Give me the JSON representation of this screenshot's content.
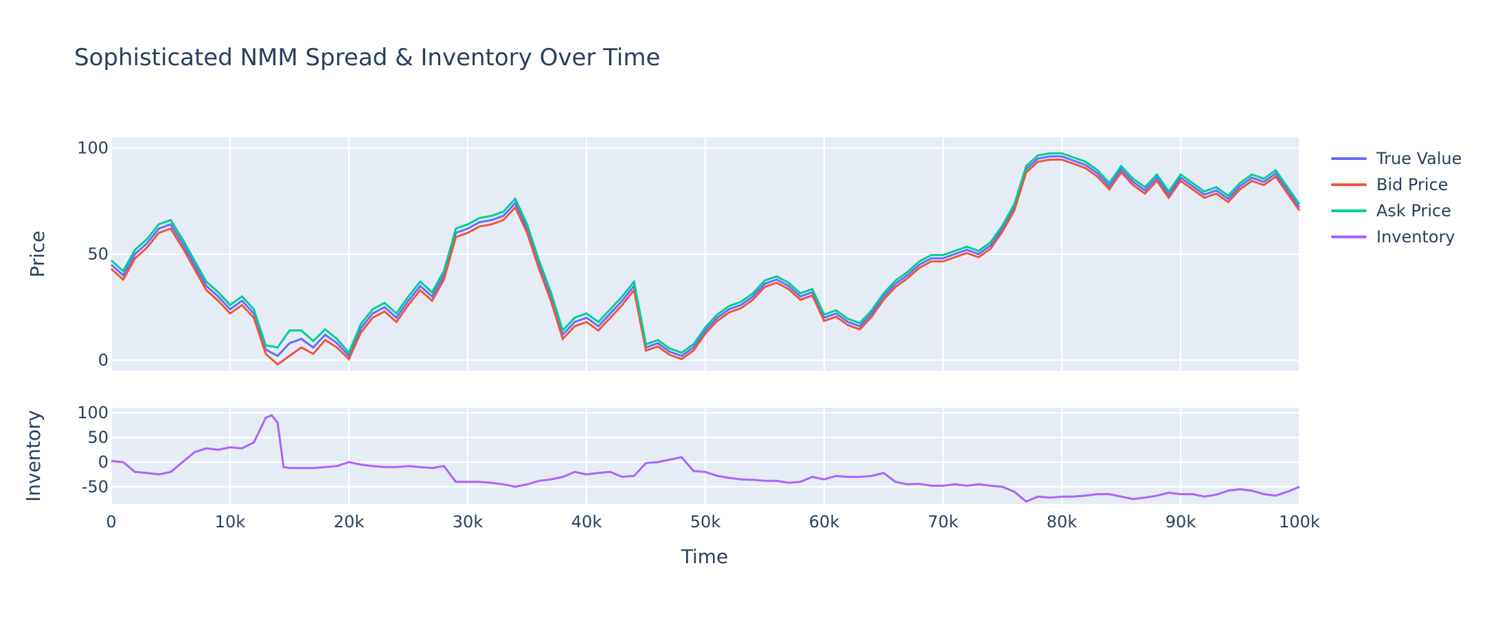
{
  "chart_data": {
    "type": "line",
    "title": "Sophisticated NMM Spread & Inventory Over Time",
    "xlabel": "Time",
    "x_ticks": [
      "0",
      "10k",
      "20k",
      "30k",
      "40k",
      "50k",
      "60k",
      "70k",
      "80k",
      "90k",
      "100k"
    ],
    "xlim": [
      0,
      100000
    ],
    "legend_position": "right",
    "grid": true,
    "subplots": [
      {
        "name": "price",
        "ylabel": "Price",
        "ylim": [
          -5,
          105
        ],
        "y_ticks": [
          0,
          50,
          100
        ],
        "series": [
          {
            "name": "True Value",
            "color": "#636efa"
          },
          {
            "name": "Bid Price",
            "color": "#ef553b"
          },
          {
            "name": "Ask Price",
            "color": "#00cc96"
          }
        ],
        "x": [
          0,
          1000,
          2000,
          3000,
          4000,
          5000,
          6000,
          7000,
          8000,
          9000,
          10000,
          11000,
          12000,
          13000,
          14000,
          15000,
          16000,
          17000,
          18000,
          19000,
          20000,
          21000,
          22000,
          23000,
          24000,
          25000,
          26000,
          27000,
          28000,
          29000,
          30000,
          31000,
          32000,
          33000,
          34000,
          35000,
          36000,
          37000,
          38000,
          39000,
          40000,
          41000,
          42000,
          43000,
          44000,
          45000,
          46000,
          47000,
          48000,
          49000,
          50000,
          51000,
          52000,
          53000,
          54000,
          55000,
          56000,
          57000,
          58000,
          59000,
          60000,
          61000,
          62000,
          63000,
          64000,
          65000,
          66000,
          67000,
          68000,
          69000,
          70000,
          71000,
          72000,
          73000,
          74000,
          75000,
          76000,
          77000,
          78000,
          79000,
          80000,
          81000,
          82000,
          83000,
          84000,
          85000,
          86000,
          87000,
          88000,
          89000,
          90000,
          91000,
          92000,
          93000,
          94000,
          95000,
          96000,
          97000,
          98000,
          99000,
          100000
        ],
        "true_value": [
          45,
          40,
          50,
          55,
          62,
          64,
          55,
          45,
          35,
          30,
          24,
          28,
          22,
          5,
          2,
          8,
          10,
          6,
          12,
          8,
          2,
          15,
          22,
          25,
          20,
          28,
          35,
          30,
          40,
          60,
          62,
          65,
          66,
          68,
          74,
          62,
          45,
          30,
          12,
          18,
          20,
          16,
          22,
          28,
          35,
          6,
          8,
          4,
          2,
          6,
          14,
          20,
          24,
          26,
          30,
          36,
          38,
          35,
          30,
          32,
          20,
          22,
          18,
          16,
          22,
          30,
          36,
          40,
          45,
          48,
          48,
          50,
          52,
          50,
          54,
          62,
          72,
          90,
          95,
          96,
          96,
          94,
          92,
          88,
          82,
          90,
          84,
          80,
          86,
          78,
          86,
          82,
          78,
          80,
          76,
          82,
          86,
          84,
          88,
          80,
          72
        ],
        "spread": [
          4,
          4,
          4,
          4,
          4,
          4,
          4,
          4,
          4,
          4,
          4,
          4,
          4,
          4,
          8,
          12,
          8,
          6,
          5,
          4,
          3,
          4,
          4,
          4,
          4,
          4,
          4,
          4,
          4,
          4,
          4,
          4,
          4,
          4,
          4,
          4,
          4,
          4,
          4,
          4,
          4,
          4,
          4,
          4,
          4,
          3,
          3,
          3,
          3,
          3,
          3,
          3,
          3,
          3,
          3,
          3,
          3,
          3,
          3,
          3,
          3,
          3,
          3,
          3,
          3,
          3,
          3,
          3,
          3,
          3,
          3,
          3,
          3,
          3,
          3,
          3,
          3,
          3,
          3,
          3,
          3,
          3,
          3,
          3,
          3,
          3,
          3,
          3,
          3,
          3,
          3,
          3,
          3,
          3,
          3,
          3,
          3,
          3,
          3,
          3,
          3
        ]
      },
      {
        "name": "inventory",
        "ylabel": "Inventory",
        "ylim": [
          -85,
          110
        ],
        "y_ticks": [
          100,
          50,
          0,
          -50
        ],
        "series": [
          {
            "name": "Inventory",
            "color": "#ab63fa"
          }
        ],
        "x": [
          0,
          1000,
          2000,
          3000,
          4000,
          5000,
          6000,
          7000,
          8000,
          9000,
          10000,
          11000,
          12000,
          13000,
          13500,
          14000,
          14500,
          15000,
          16000,
          17000,
          18000,
          19000,
          20000,
          21000,
          22000,
          23000,
          24000,
          25000,
          26000,
          27000,
          28000,
          29000,
          30000,
          31000,
          32000,
          33000,
          34000,
          35000,
          36000,
          37000,
          38000,
          39000,
          40000,
          41000,
          42000,
          43000,
          44000,
          45000,
          46000,
          47000,
          48000,
          49000,
          50000,
          51000,
          52000,
          53000,
          54000,
          55000,
          56000,
          57000,
          58000,
          59000,
          60000,
          61000,
          62000,
          63000,
          64000,
          65000,
          66000,
          67000,
          68000,
          69000,
          70000,
          71000,
          72000,
          73000,
          74000,
          75000,
          76000,
          77000,
          78000,
          79000,
          80000,
          81000,
          82000,
          83000,
          84000,
          85000,
          86000,
          87000,
          88000,
          89000,
          90000,
          91000,
          92000,
          93000,
          94000,
          95000,
          96000,
          97000,
          98000,
          99000,
          100000
        ],
        "values": [
          2,
          0,
          -20,
          -22,
          -25,
          -20,
          0,
          20,
          28,
          25,
          30,
          28,
          40,
          90,
          95,
          80,
          -10,
          -12,
          -12,
          -12,
          -10,
          -8,
          0,
          -5,
          -8,
          -10,
          -10,
          -8,
          -10,
          -12,
          -8,
          -40,
          -40,
          -40,
          -42,
          -45,
          -50,
          -45,
          -38,
          -35,
          -30,
          -20,
          -25,
          -22,
          -20,
          -30,
          -28,
          -2,
          0,
          5,
          10,
          -18,
          -20,
          -28,
          -32,
          -35,
          -36,
          -38,
          -38,
          -42,
          -40,
          -30,
          -35,
          -28,
          -30,
          -30,
          -28,
          -22,
          -40,
          -45,
          -44,
          -48,
          -48,
          -45,
          -48,
          -45,
          -48,
          -50,
          -60,
          -80,
          -70,
          -72,
          -70,
          -70,
          -68,
          -65,
          -65,
          -70,
          -75,
          -72,
          -68,
          -62,
          -65,
          -65,
          -70,
          -66,
          -58,
          -55,
          -58,
          -65,
          -68,
          -60,
          -50
        ]
      }
    ]
  }
}
